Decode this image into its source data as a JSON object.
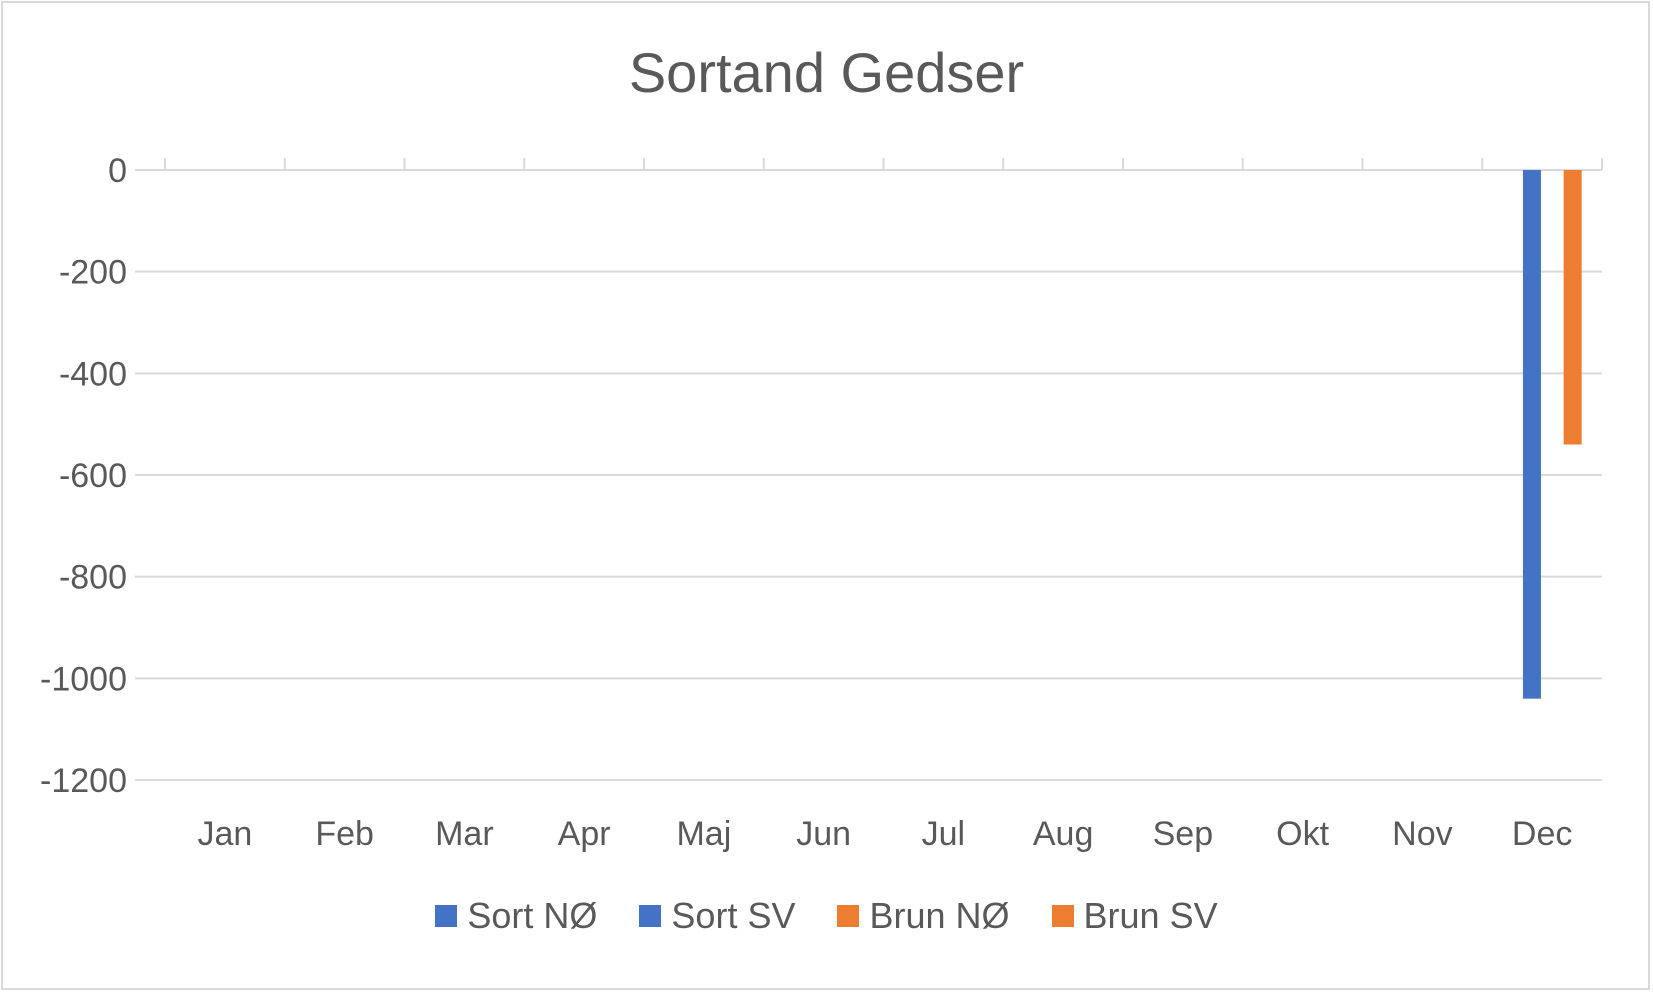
{
  "chart_data": {
    "type": "bar",
    "title": "Sortand Gedser",
    "xlabel": "",
    "ylabel": "",
    "categories": [
      "Jan",
      "Feb",
      "Mar",
      "Apr",
      "Maj",
      "Jun",
      "Jul",
      "Aug",
      "Sep",
      "Okt",
      "Nov",
      "Dec"
    ],
    "ylim": [
      -1200,
      0
    ],
    "yticks": [
      0,
      -200,
      -400,
      -600,
      -800,
      -1000,
      -1200
    ],
    "grid": true,
    "legend_position": "bottom",
    "series": [
      {
        "name": "Sort NØ",
        "color": "#4472c4",
        "values": [
          0,
          0,
          0,
          0,
          0,
          0,
          0,
          0,
          0,
          0,
          0,
          0
        ]
      },
      {
        "name": "Sort SV",
        "color": "#4472c4",
        "values": [
          0,
          0,
          0,
          0,
          0,
          0,
          0,
          0,
          0,
          0,
          0,
          -1040
        ]
      },
      {
        "name": "Brun NØ",
        "color": "#ed7d31",
        "values": [
          0,
          0,
          0,
          0,
          0,
          0,
          0,
          0,
          0,
          0,
          0,
          0
        ]
      },
      {
        "name": "Brun SV",
        "color": "#ed7d31",
        "values": [
          0,
          0,
          0,
          0,
          0,
          0,
          0,
          0,
          0,
          0,
          0,
          -540
        ]
      }
    ]
  }
}
